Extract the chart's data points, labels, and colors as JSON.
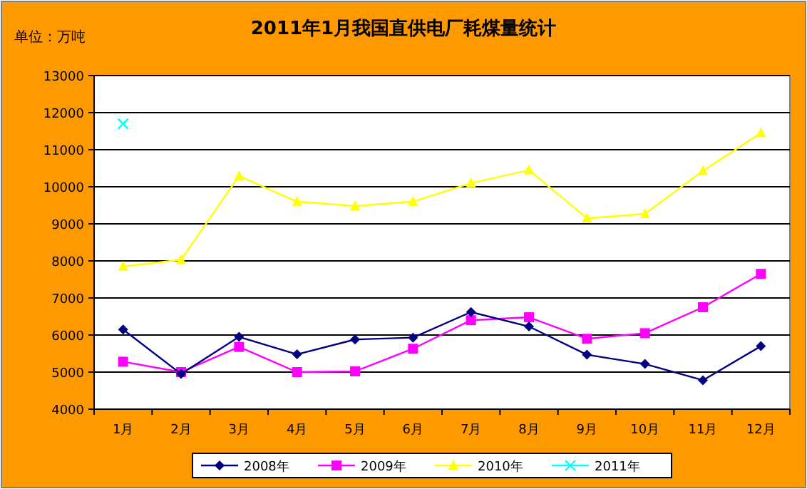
{
  "chart_data": {
    "type": "line",
    "title": "2011年1月我国直供电厂耗煤量统计",
    "ylabel": "单位：万吨",
    "categories": [
      "1月",
      "2月",
      "3月",
      "4月",
      "5月",
      "6月",
      "7月",
      "8月",
      "9月",
      "10月",
      "11月",
      "12月"
    ],
    "series": [
      {
        "name": "2008年",
        "color": "#000080",
        "marker": "diamond",
        "values": [
          6150,
          4950,
          5950,
          5480,
          5880,
          5930,
          6620,
          6230,
          5470,
          5220,
          4780,
          5700
        ]
      },
      {
        "name": "2009年",
        "color": "#ff00ff",
        "marker": "square",
        "values": [
          5280,
          5000,
          5680,
          5000,
          5020,
          5630,
          6400,
          6480,
          5900,
          6050,
          6750,
          7650
        ]
      },
      {
        "name": "2010年",
        "color": "#ffff00",
        "marker": "triangle",
        "values": [
          7850,
          8030,
          10290,
          9600,
          9480,
          9600,
          10100,
          10450,
          9150,
          9270,
          10430,
          11450
        ]
      },
      {
        "name": "2011年",
        "color": "#00ffff",
        "marker": "cross",
        "values": [
          11700,
          null,
          null,
          null,
          null,
          null,
          null,
          null,
          null,
          null,
          null,
          null
        ]
      }
    ],
    "ylim": [
      4000,
      13000
    ],
    "yticks": [
      4000,
      5000,
      6000,
      7000,
      8000,
      9000,
      10000,
      11000,
      12000,
      13000
    ],
    "grid": "y",
    "legend": "bottom"
  }
}
